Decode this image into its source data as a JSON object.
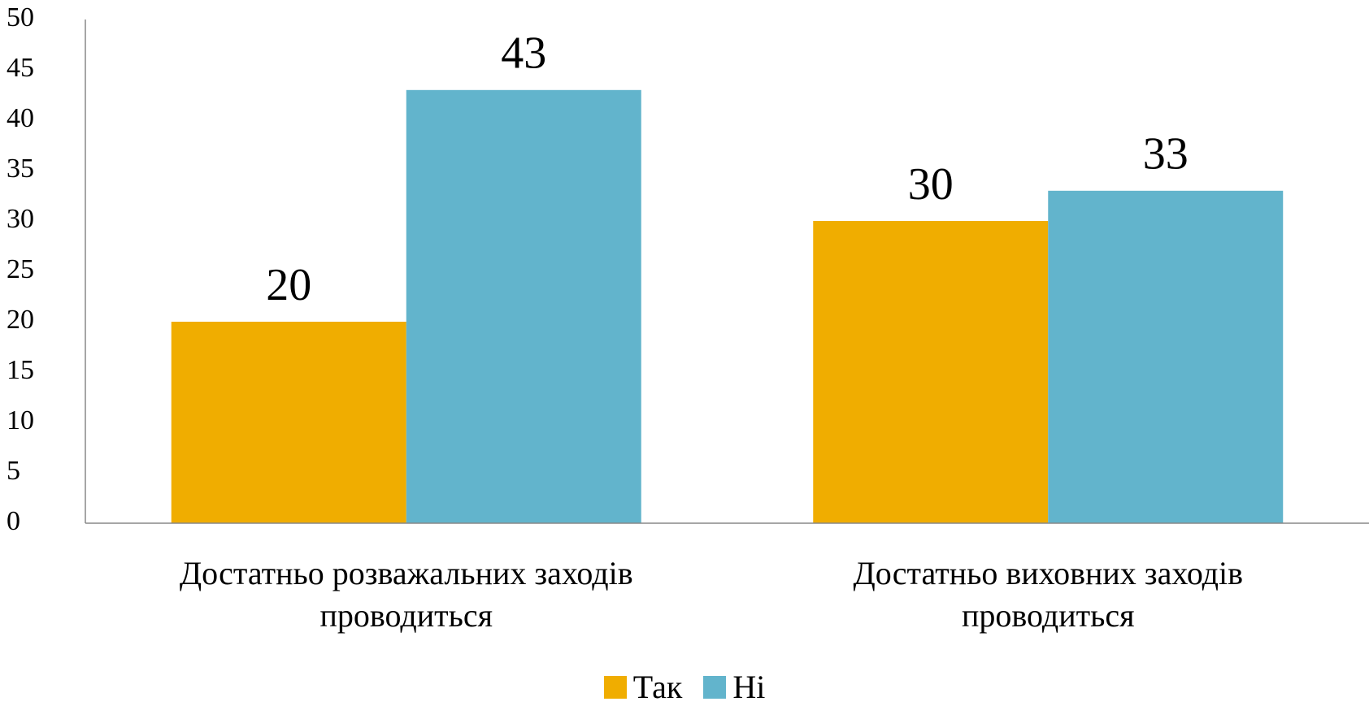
{
  "chart_data": {
    "type": "bar",
    "categories": [
      "Достатньо розважальних заходів проводиться",
      "Достатньо виховних заходів проводиться"
    ],
    "series": [
      {
        "name": "Так",
        "color": "#f0ad00",
        "values": [
          20,
          30
        ]
      },
      {
        "name": "Ні",
        "color": "#62b4cc",
        "values": [
          43,
          33
        ]
      }
    ],
    "ylim": [
      0,
      50
    ],
    "yticks": [
      0,
      5,
      10,
      15,
      20,
      25,
      30,
      35,
      40,
      45,
      50
    ],
    "legend": "bottom"
  }
}
